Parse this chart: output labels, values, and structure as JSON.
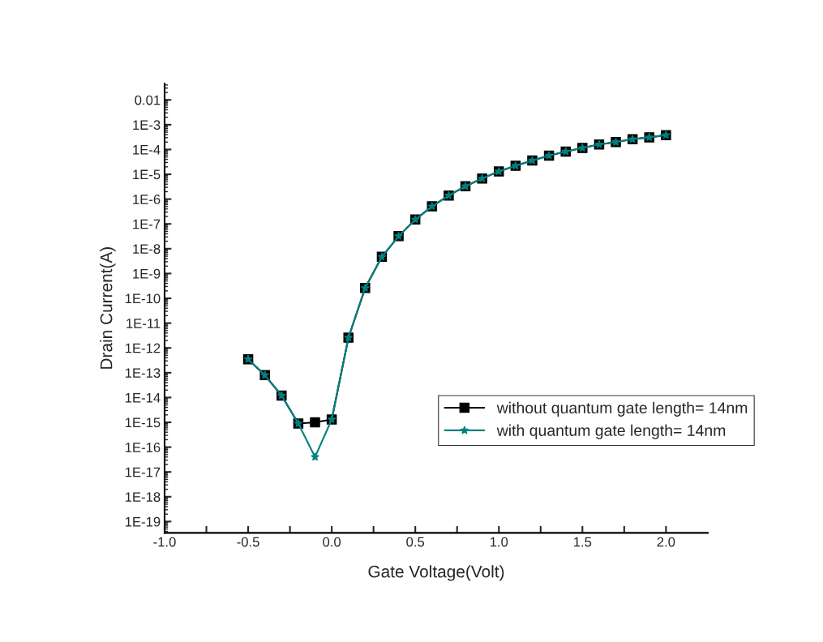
{
  "chart_data": {
    "type": "line",
    "xlabel": "Gate Voltage(Volt)",
    "ylabel": "Drain Current(A)",
    "log": "y",
    "x": [
      -0.5,
      -0.4,
      -0.3,
      -0.2,
      -0.1,
      0.0,
      0.1,
      0.2,
      0.3,
      0.4,
      0.5,
      0.6,
      0.7,
      0.8,
      0.9,
      1.0,
      1.1,
      1.2,
      1.3,
      1.4,
      1.5,
      1.6,
      1.7,
      1.8,
      1.9,
      2.0
    ],
    "series": [
      {
        "name": "without quantum gate length= 14nm",
        "color": "#000000",
        "marker": "square",
        "values": [
          3.5e-13,
          8e-14,
          1.2e-14,
          9e-16,
          1e-15,
          1.3e-15,
          2.6e-12,
          2.6e-10,
          4.7e-09,
          3.2e-08,
          1.5e-07,
          5.1e-07,
          1.4e-06,
          3.3e-06,
          6.8e-06,
          1.3e-05,
          2.2e-05,
          3.6e-05,
          5.7e-05,
          8.3e-05,
          0.000115,
          0.00016,
          0.0002,
          0.00026,
          0.00031,
          0.00038
        ]
      },
      {
        "name": "with quantum gate length= 14nm",
        "color": "#008080",
        "marker": "star",
        "values": [
          3.5e-13,
          8e-14,
          1.2e-14,
          9e-16,
          4e-17,
          1.3e-15,
          2.6e-12,
          2.6e-10,
          4.7e-09,
          3.2e-08,
          1.5e-07,
          5.1e-07,
          1.4e-06,
          3.3e-06,
          6.8e-06,
          1.3e-05,
          2.2e-05,
          3.6e-05,
          5.7e-05,
          8.3e-05,
          0.000115,
          0.00016,
          0.0002,
          0.00026,
          0.00031,
          0.00038
        ]
      }
    ],
    "xlim": [
      -1.0,
      2.25
    ],
    "xticks": [
      {
        "value": -1.0,
        "label": "-1.0"
      },
      {
        "value": -0.75,
        "label": null
      },
      {
        "value": -0.5,
        "label": "-0.5"
      },
      {
        "value": -0.25,
        "label": null
      },
      {
        "value": 0.0,
        "label": "0.0"
      },
      {
        "value": 0.25,
        "label": null
      },
      {
        "value": 0.5,
        "label": "0.5"
      },
      {
        "value": 0.75,
        "label": null
      },
      {
        "value": 1.0,
        "label": "1.0"
      },
      {
        "value": 1.25,
        "label": null
      },
      {
        "value": 1.5,
        "label": "1.5"
      },
      {
        "value": 1.75,
        "label": null
      },
      {
        "value": 2.0,
        "label": "2.0"
      }
    ],
    "ylim": [
      3.5e-20,
      0.046
    ],
    "yticks": [
      0.01,
      {
        "value": 0.001,
        "label": "1E-3"
      },
      {
        "value": 0.0001,
        "label": "1E-4"
      },
      {
        "value": 1e-05,
        "label": "1E-5"
      },
      {
        "value": 1e-06,
        "label": "1E-6"
      },
      {
        "value": 1e-07,
        "label": "1E-7"
      },
      {
        "value": 1e-08,
        "label": "1E-8"
      },
      {
        "value": 1e-09,
        "label": "1E-9"
      },
      {
        "value": 1e-10,
        "label": "1E-10"
      },
      {
        "value": 1e-11,
        "label": "1E-11"
      },
      {
        "value": 1e-12,
        "label": "1E-12"
      },
      {
        "value": 1e-13,
        "label": "1E-13"
      },
      {
        "value": 1e-14,
        "label": "1E-14"
      },
      {
        "value": 1e-15,
        "label": "1E-15"
      },
      {
        "value": 1e-16,
        "label": "1E-16"
      },
      {
        "value": 1e-17,
        "label": "1E-17"
      },
      {
        "value": 1e-18,
        "label": "1E-18"
      },
      {
        "value": 1e-19,
        "label": "1E-19"
      }
    ],
    "grid": false,
    "legend": "right",
    "line_style": "solid"
  }
}
